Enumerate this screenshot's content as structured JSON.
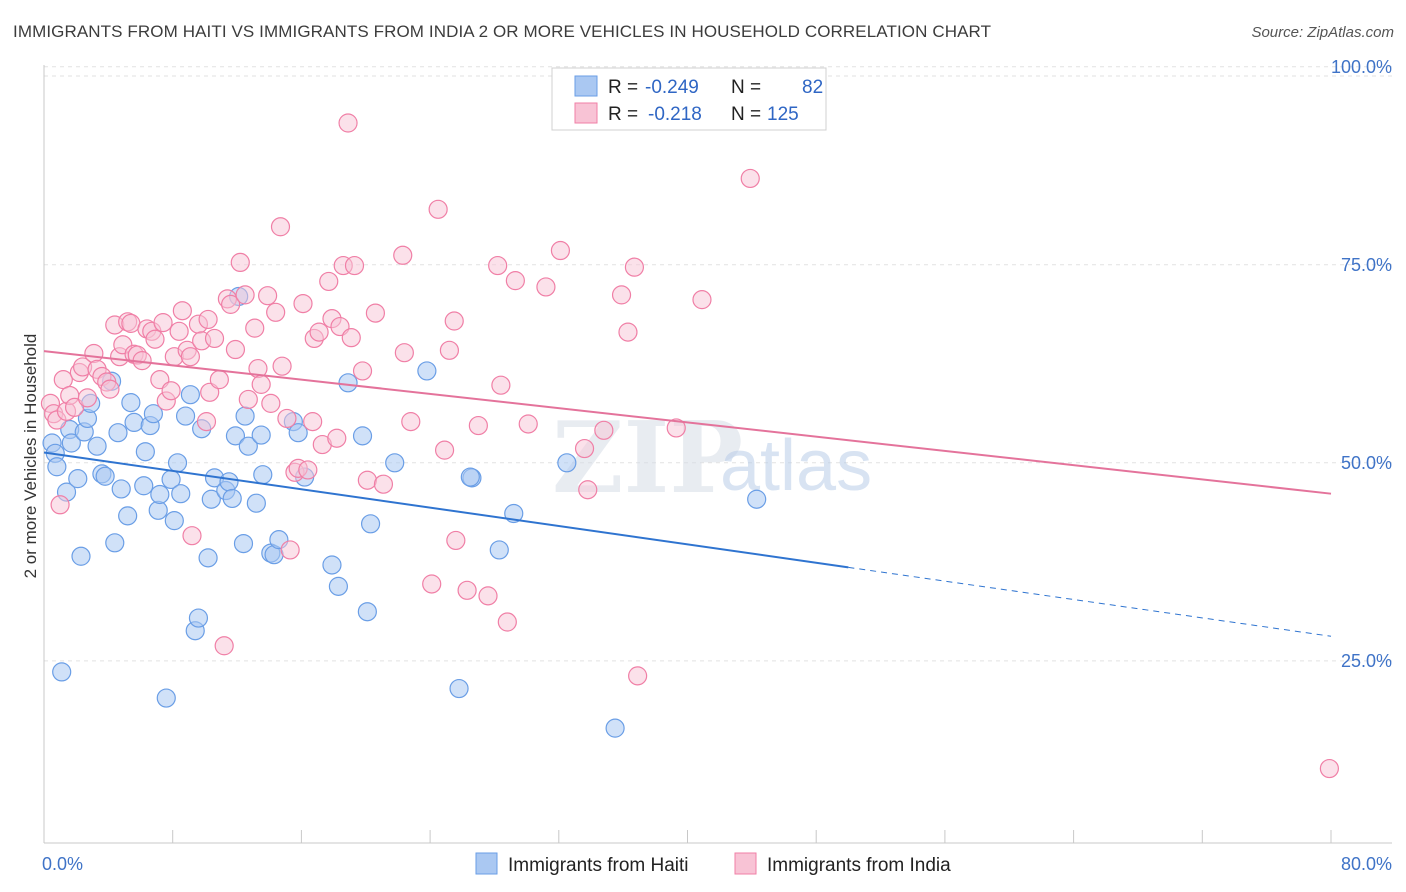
{
  "title": "IMMIGRANTS FROM HAITI VS IMMIGRANTS FROM INDIA 2 OR MORE VEHICLES IN HOUSEHOLD CORRELATION CHART",
  "source": "Source: ZipAtlas.com",
  "watermark": {
    "zip": "ZIP",
    "atlas": "atlas"
  },
  "colors": {
    "haiti": "#6a9ee6",
    "india": "#f07fa6",
    "haiti_line": "#2f74d0",
    "india_line": "#e4739b",
    "tick": "#3f73c7"
  },
  "legend_box": {
    "rows": [
      {
        "r_label": "R =",
        "r_value": "-0.249",
        "n_label": "N =",
        "n_value": "82"
      },
      {
        "r_label": "R =",
        "r_value": "-0.218",
        "n_label": "N =",
        "n_value": "125"
      }
    ]
  },
  "bottom_legend": {
    "haiti": "Immigrants from Haiti",
    "india": "Immigrants from India"
  },
  "chart_data": {
    "type": "scatter",
    "title": "IMMIGRANTS FROM HAITI VS IMMIGRANTS FROM INDIA 2 OR MORE VEHICLES IN HOUSEHOLD CORRELATION CHART",
    "xlabel": "",
    "ylabel": "2 or more Vehicles in Household",
    "xlim": [
      0,
      80
    ],
    "ylim": [
      2,
      103
    ],
    "x_tick_labels": [
      "0.0%",
      "80.0%"
    ],
    "y_ticks": [
      25,
      50,
      75,
      100
    ],
    "y_tick_labels": [
      "25.0%",
      "50.0%",
      "75.0%",
      "100.0%"
    ],
    "grid": true,
    "series": [
      {
        "name": "Immigrants from Haiti",
        "color": "#6a9ee6",
        "points": [
          [
            0.5,
            52.5
          ],
          [
            0.7,
            51.2
          ],
          [
            0.8,
            49.5
          ],
          [
            1.1,
            23.6
          ],
          [
            1.4,
            46.3
          ],
          [
            1.6,
            54.2
          ],
          [
            1.7,
            52.5
          ],
          [
            2.1,
            48
          ],
          [
            2.3,
            38.2
          ],
          [
            2.5,
            53.9
          ],
          [
            2.7,
            55.6
          ],
          [
            2.9,
            57.5
          ],
          [
            3.3,
            52.1
          ],
          [
            3.6,
            48.6
          ],
          [
            3.8,
            48.3
          ],
          [
            4.2,
            60.3
          ],
          [
            4.4,
            39.9
          ],
          [
            4.6,
            53.8
          ],
          [
            4.8,
            46.7
          ],
          [
            5.2,
            43.3
          ],
          [
            5.4,
            57.6
          ],
          [
            5.6,
            55.1
          ],
          [
            6.2,
            47.1
          ],
          [
            6.3,
            51.4
          ],
          [
            6.6,
            54.7
          ],
          [
            6.8,
            56.2
          ],
          [
            7.1,
            44
          ],
          [
            7.2,
            46
          ],
          [
            7.6,
            20.3
          ],
          [
            7.9,
            47.9
          ],
          [
            8.1,
            42.7
          ],
          [
            8.3,
            50
          ],
          [
            8.5,
            46.1
          ],
          [
            8.8,
            55.9
          ],
          [
            9.1,
            58.6
          ],
          [
            9.4,
            28.8
          ],
          [
            9.6,
            30.4
          ],
          [
            9.8,
            54.3
          ],
          [
            10.2,
            38
          ],
          [
            10.4,
            45.4
          ],
          [
            10.6,
            48.1
          ],
          [
            11.3,
            46.5
          ],
          [
            11.5,
            47.6
          ],
          [
            11.7,
            45.5
          ],
          [
            11.9,
            53.4
          ],
          [
            12.1,
            71
          ],
          [
            12.4,
            39.8
          ],
          [
            12.5,
            55.9
          ],
          [
            12.7,
            52.1
          ],
          [
            13.2,
            44.9
          ],
          [
            13.5,
            53.5
          ],
          [
            13.6,
            48.5
          ],
          [
            14.1,
            38.6
          ],
          [
            14.3,
            38.4
          ],
          [
            14.6,
            40.3
          ],
          [
            15.5,
            55.2
          ],
          [
            15.8,
            53.8
          ],
          [
            16.2,
            48.2
          ],
          [
            17.9,
            37.1
          ],
          [
            18.3,
            34.4
          ],
          [
            18.9,
            60.1
          ],
          [
            19.8,
            53.4
          ],
          [
            20.3,
            42.3
          ],
          [
            20.1,
            31.2
          ],
          [
            21.8,
            50
          ],
          [
            23.8,
            61.6
          ],
          [
            25.8,
            21.5
          ],
          [
            26.6,
            48.1
          ],
          [
            26.5,
            48.2
          ],
          [
            28.3,
            39
          ],
          [
            29.2,
            43.6
          ],
          [
            32.5,
            50
          ],
          [
            35.5,
            16.5
          ],
          [
            44.3,
            45.4
          ]
        ],
        "trend": {
          "x1": 0,
          "y1": 51.3,
          "x2": 50,
          "y2": 36.8,
          "dash_to_x": 80,
          "dash_to_y": 28.1
        }
      },
      {
        "name": "Immigrants from India",
        "color": "#f07fa6",
        "points": [
          [
            0.4,
            57.5
          ],
          [
            0.6,
            56.2
          ],
          [
            0.8,
            55.4
          ],
          [
            1,
            44.7
          ],
          [
            1.2,
            60.5
          ],
          [
            1.4,
            56.5
          ],
          [
            1.6,
            58.5
          ],
          [
            1.9,
            57
          ],
          [
            2.2,
            61.4
          ],
          [
            2.4,
            62.1
          ],
          [
            2.7,
            58.2
          ],
          [
            3.1,
            63.8
          ],
          [
            3.3,
            61.8
          ],
          [
            3.6,
            60.9
          ],
          [
            3.9,
            60.2
          ],
          [
            4.1,
            59.3
          ],
          [
            4.4,
            67.4
          ],
          [
            4.7,
            63.4
          ],
          [
            4.9,
            64.9
          ],
          [
            5.2,
            67.8
          ],
          [
            5.4,
            67.6
          ],
          [
            5.6,
            63.7
          ],
          [
            5.8,
            63.6
          ],
          [
            6.1,
            62.9
          ],
          [
            6.4,
            66.9
          ],
          [
            6.7,
            66.6
          ],
          [
            6.9,
            65.6
          ],
          [
            7.2,
            60.5
          ],
          [
            7.4,
            67.7
          ],
          [
            7.6,
            57.8
          ],
          [
            7.9,
            59.1
          ],
          [
            8.1,
            63.4
          ],
          [
            8.4,
            66.6
          ],
          [
            8.6,
            69.2
          ],
          [
            8.9,
            64.2
          ],
          [
            9.1,
            63.4
          ],
          [
            9.2,
            40.8
          ],
          [
            9.6,
            67.5
          ],
          [
            9.8,
            65.4
          ],
          [
            10.1,
            55.2
          ],
          [
            10.2,
            68.1
          ],
          [
            10.3,
            58.9
          ],
          [
            10.6,
            65.7
          ],
          [
            10.9,
            60.5
          ],
          [
            11.2,
            26.9
          ],
          [
            11.4,
            70.7
          ],
          [
            11.6,
            70
          ],
          [
            11.9,
            64.3
          ],
          [
            12.2,
            75.3
          ],
          [
            12.5,
            71.2
          ],
          [
            12.7,
            58
          ],
          [
            13.1,
            67
          ],
          [
            13.3,
            61.9
          ],
          [
            13.5,
            59.9
          ],
          [
            13.9,
            71.1
          ],
          [
            14.1,
            57.5
          ],
          [
            14.4,
            69
          ],
          [
            14.7,
            79.8
          ],
          [
            14.8,
            62.2
          ],
          [
            15.1,
            55.6
          ],
          [
            15.3,
            39
          ],
          [
            15.6,
            48.8
          ],
          [
            15.8,
            49.3
          ],
          [
            16.1,
            70.1
          ],
          [
            16.4,
            49.1
          ],
          [
            16.7,
            55.2
          ],
          [
            16.8,
            65.7
          ],
          [
            17.1,
            66.5
          ],
          [
            17.3,
            52.3
          ],
          [
            17.7,
            72.9
          ],
          [
            17.9,
            68.2
          ],
          [
            18.2,
            53.1
          ],
          [
            18.4,
            67.2
          ],
          [
            18.6,
            74.9
          ],
          [
            18.9,
            92.9
          ],
          [
            19.1,
            65.8
          ],
          [
            19.3,
            74.9
          ],
          [
            19.8,
            61.6
          ],
          [
            20.1,
            47.8
          ],
          [
            20.6,
            68.9
          ],
          [
            21.1,
            47.3
          ],
          [
            22.3,
            76.2
          ],
          [
            22.4,
            63.9
          ],
          [
            22.8,
            55.2
          ],
          [
            24.1,
            34.7
          ],
          [
            24.5,
            82
          ],
          [
            24.9,
            51.6
          ],
          [
            25.2,
            64.2
          ],
          [
            25.5,
            67.9
          ],
          [
            25.6,
            40.2
          ],
          [
            26.3,
            33.9
          ],
          [
            27,
            54.7
          ],
          [
            27.6,
            33.2
          ],
          [
            28.2,
            74.9
          ],
          [
            28.4,
            59.8
          ],
          [
            28.8,
            29.9
          ],
          [
            29.3,
            73
          ],
          [
            30.1,
            54.9
          ],
          [
            31.2,
            72.2
          ],
          [
            32.1,
            76.8
          ],
          [
            33.6,
            51.8
          ],
          [
            33.8,
            46.6
          ],
          [
            34.8,
            54.1
          ],
          [
            35.9,
            71.2
          ],
          [
            36.3,
            66.5
          ],
          [
            36.7,
            74.7
          ],
          [
            36.9,
            23.1
          ],
          [
            39.3,
            54.4
          ],
          [
            40.9,
            70.6
          ],
          [
            43.9,
            85.9
          ],
          [
            79.9,
            11.4
          ]
        ],
        "trend": {
          "x1": 0,
          "y1": 64.1,
          "x2": 80,
          "y2": 46.1
        }
      }
    ]
  }
}
